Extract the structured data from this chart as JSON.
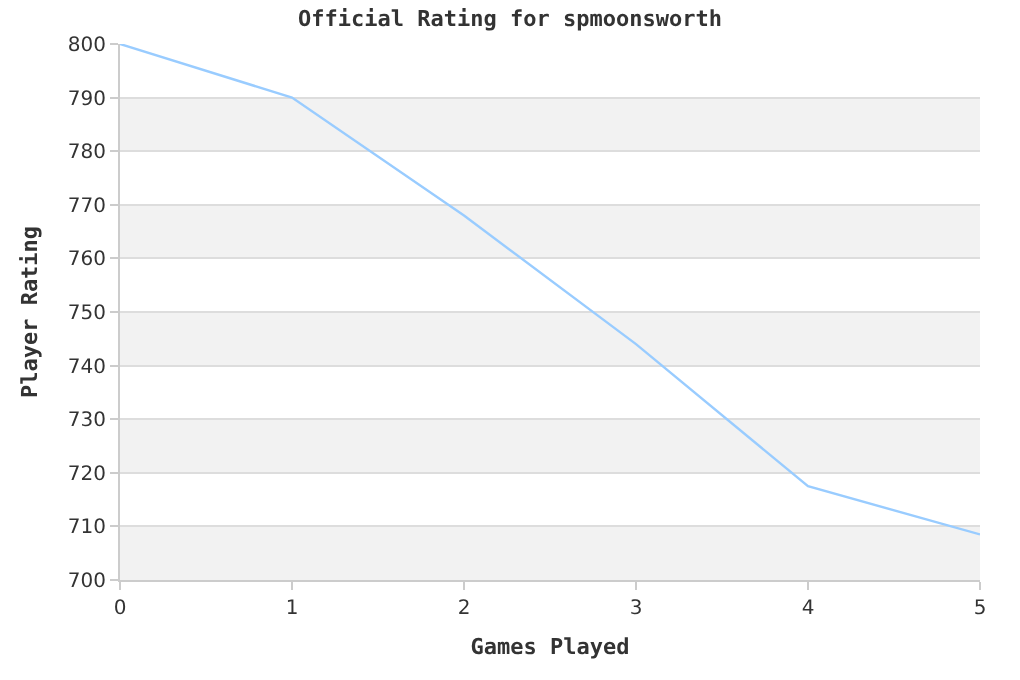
{
  "chart_data": {
    "type": "line",
    "title": "Official Rating for spmoonsworth",
    "xlabel": "Games Played",
    "ylabel": "Player Rating",
    "x": [
      0,
      1,
      2,
      3,
      4,
      5
    ],
    "series": [
      {
        "color": "#99ccff",
        "values": [
          800,
          790,
          768,
          744,
          717.5,
          708.5
        ]
      }
    ],
    "xlim": [
      0,
      5
    ],
    "xticks": [
      0,
      1,
      2,
      3,
      4,
      5
    ],
    "ylim": [
      700,
      800
    ],
    "yticks": [
      700,
      710,
      720,
      730,
      740,
      750,
      760,
      770,
      780,
      790,
      800
    ],
    "bands": [
      {
        "axis": "y",
        "from": 700,
        "to": 710,
        "color": "#f2f2f2"
      },
      {
        "axis": "y",
        "from": 720,
        "to": 730,
        "color": "#f2f2f2"
      },
      {
        "axis": "y",
        "from": 740,
        "to": 750,
        "color": "#f2f2f2"
      },
      {
        "axis": "y",
        "from": 760,
        "to": 770,
        "color": "#f2f2f2"
      },
      {
        "axis": "y",
        "from": 780,
        "to": 790,
        "color": "#f2f2f2"
      }
    ],
    "grid": "y",
    "marker": "none",
    "line_style": "solid"
  }
}
